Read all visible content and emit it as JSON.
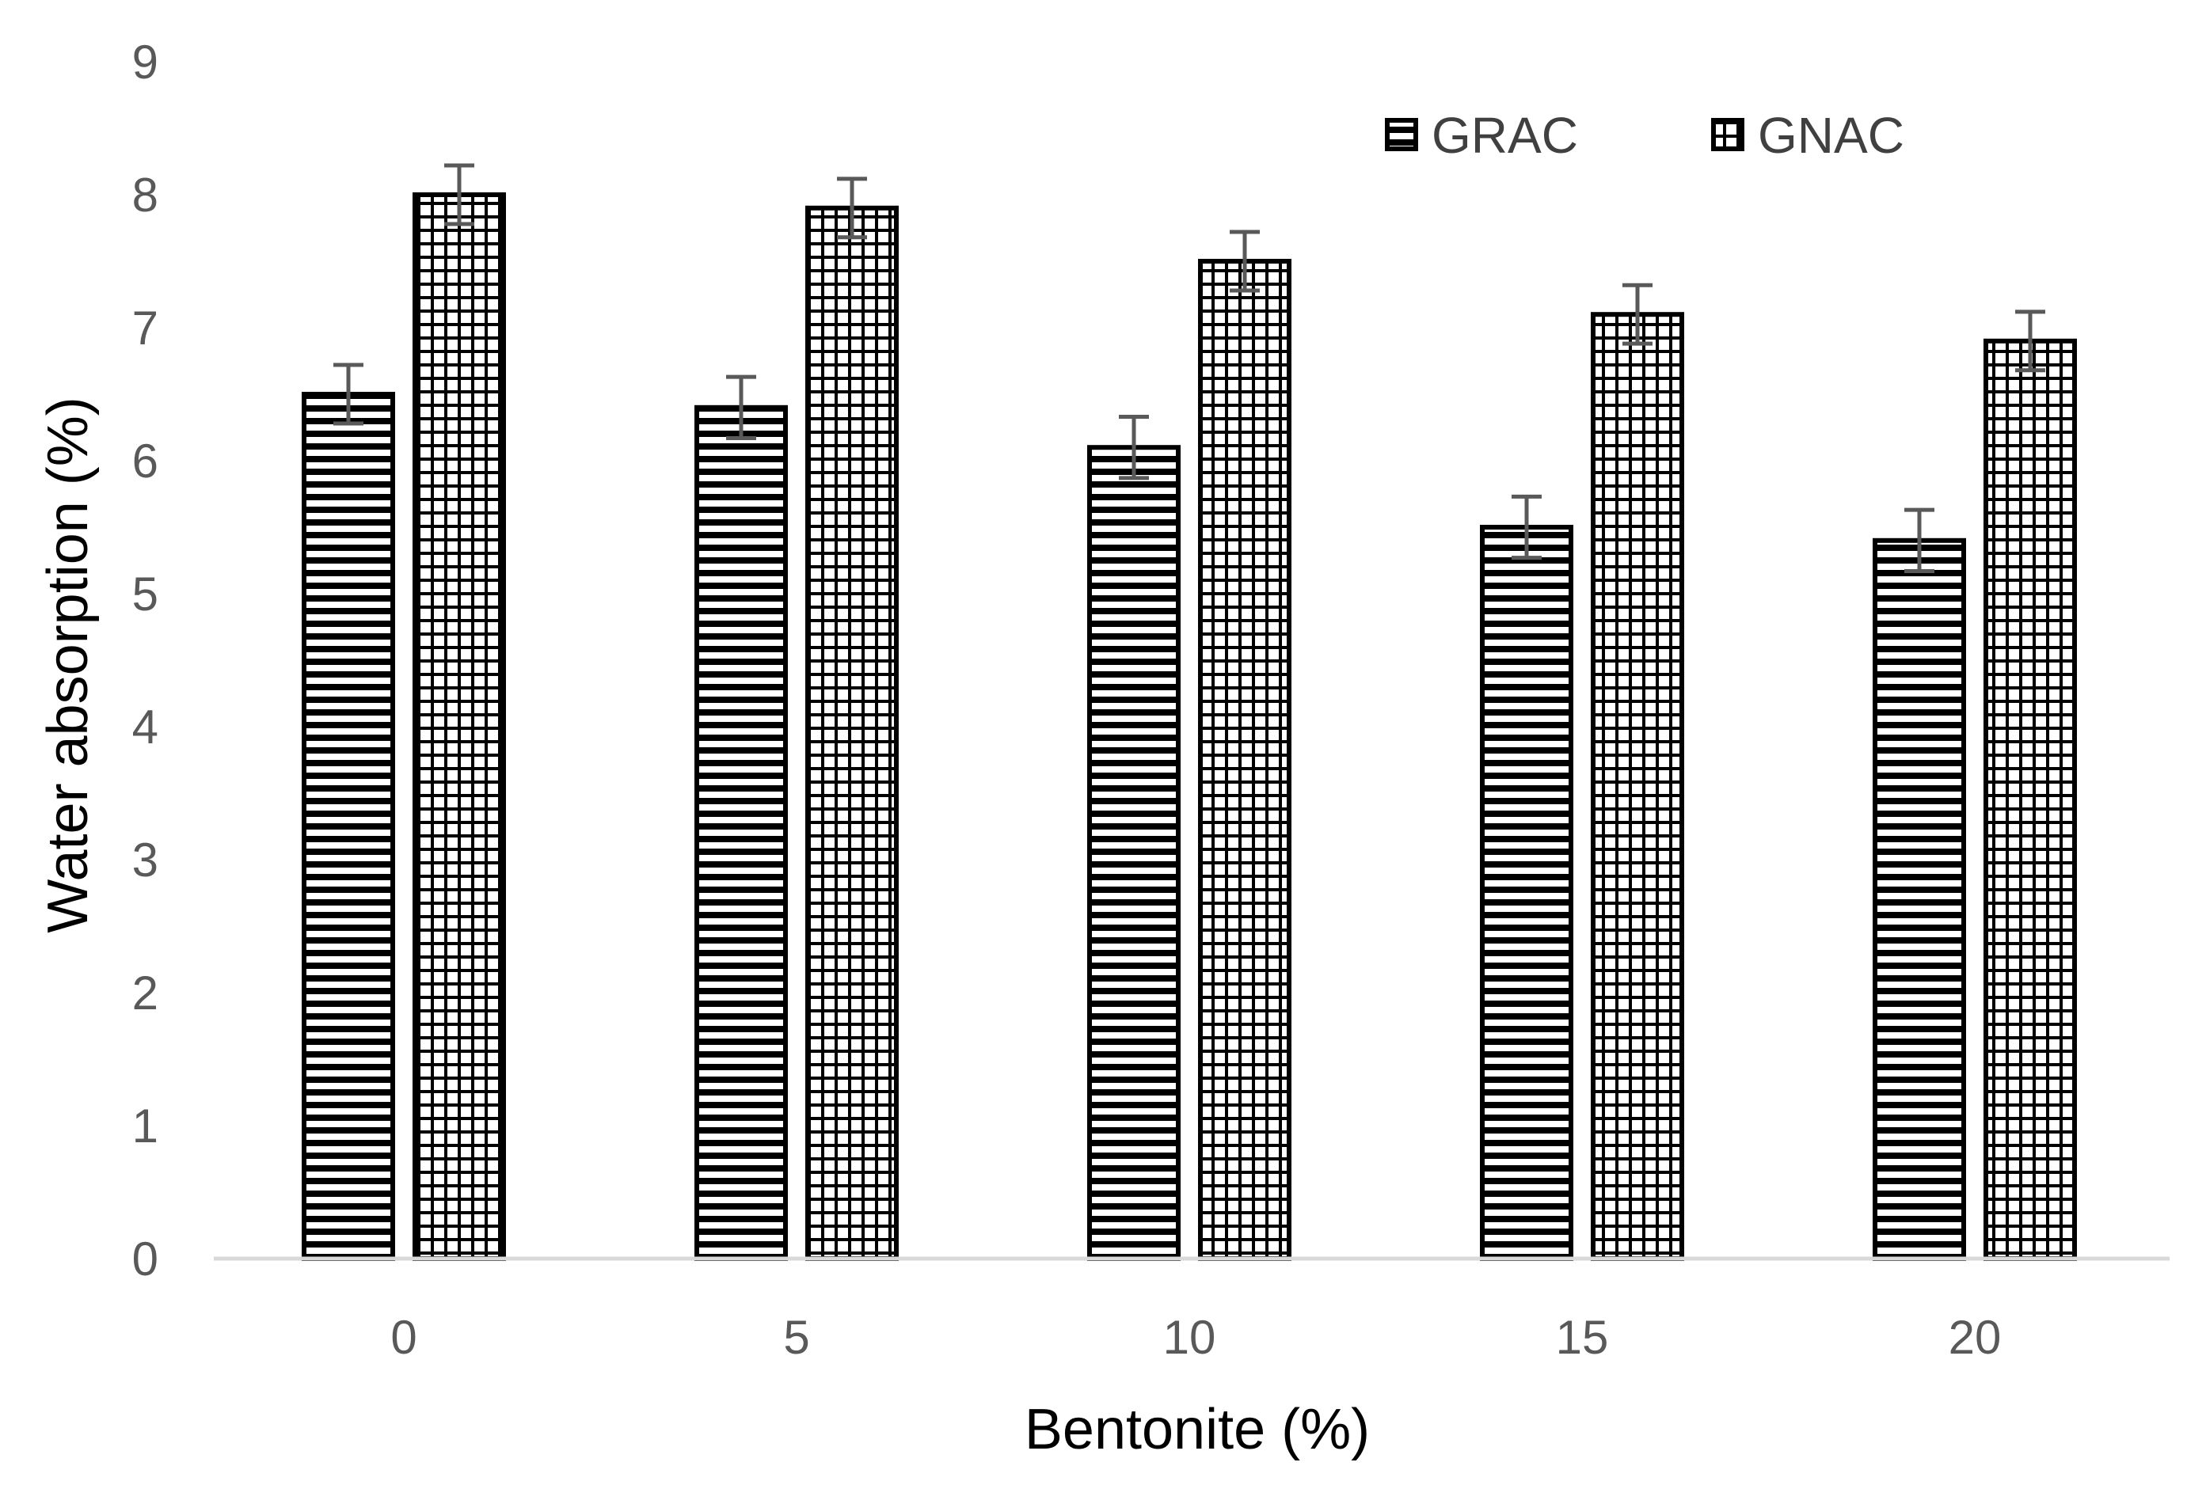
{
  "chart_data": {
    "type": "bar",
    "title": "",
    "xlabel": "Bentonite (%)",
    "ylabel": "Water absorption (%)",
    "categories": [
      "0",
      "5",
      "10",
      "15",
      "20"
    ],
    "series": [
      {
        "name": "GRAC",
        "pattern": "horizontal-stripes",
        "values": [
          6.5,
          6.4,
          6.1,
          5.5,
          5.4
        ],
        "error": [
          0.22,
          0.23,
          0.23,
          0.23,
          0.23
        ]
      },
      {
        "name": "GNAC",
        "pattern": "grid",
        "values": [
          8.0,
          7.9,
          7.5,
          7.1,
          6.9
        ],
        "error": [
          0.22,
          0.22,
          0.22,
          0.22,
          0.22
        ]
      }
    ],
    "ylim": [
      0,
      9
    ],
    "yticks": [
      "0",
      "1",
      "2",
      "3",
      "4",
      "5",
      "6",
      "7",
      "8",
      "9"
    ],
    "grid": false,
    "legend_position": "top-right"
  },
  "colors": {
    "bar_stroke": "#000000",
    "bar_fill": "#ffffff",
    "axis_line": "#d9d9d9",
    "tick_text": "#595959",
    "error_bar": "#595959"
  }
}
